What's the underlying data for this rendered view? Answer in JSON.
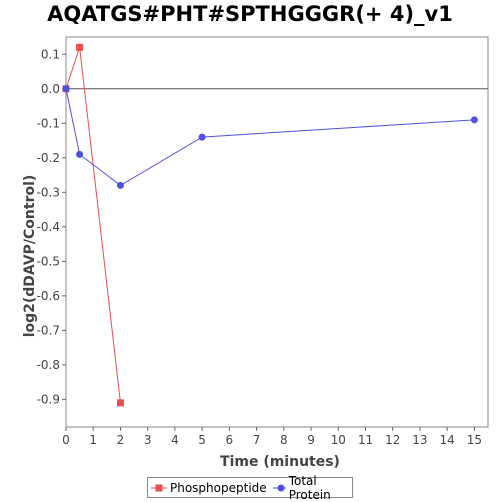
{
  "chart_data": {
    "type": "line",
    "title": "AQATGS#PHT#SPTHGGGR(+ 4)_v1",
    "xlabel": "Time (minutes)",
    "ylabel": "log2(dDAVP/Control)",
    "xlim": [
      0,
      15.5
    ],
    "ylim": [
      -0.98,
      0.15
    ],
    "xticks": [
      0,
      1,
      2,
      3,
      4,
      5,
      6,
      7,
      8,
      9,
      10,
      11,
      12,
      13,
      14,
      15
    ],
    "yticks": [
      0.1,
      0.0,
      -0.1,
      -0.2,
      -0.3,
      -0.4,
      -0.5,
      -0.6,
      -0.7,
      -0.8,
      -0.9
    ],
    "ytick_labels": [
      "0.1",
      "0.0",
      "-0.1",
      "-0.2",
      "-0.3",
      "-0.4",
      "-0.5",
      "-0.6",
      "-0.7",
      "-0.8",
      "-0.9"
    ],
    "zero_line": true,
    "grid": false,
    "legend_position": "bottom",
    "series": [
      {
        "name": "Phosphopeptide",
        "color": "#e8504f",
        "marker": "square",
        "x": [
          0,
          0.5,
          2
        ],
        "y": [
          0.0,
          0.12,
          -0.91
        ]
      },
      {
        "name": "Total Protein",
        "color": "#5050e0",
        "marker": "circle",
        "x": [
          0,
          0.5,
          2,
          5,
          15
        ],
        "y": [
          0.0,
          -0.19,
          -0.28,
          -0.14,
          -0.09
        ]
      }
    ]
  }
}
